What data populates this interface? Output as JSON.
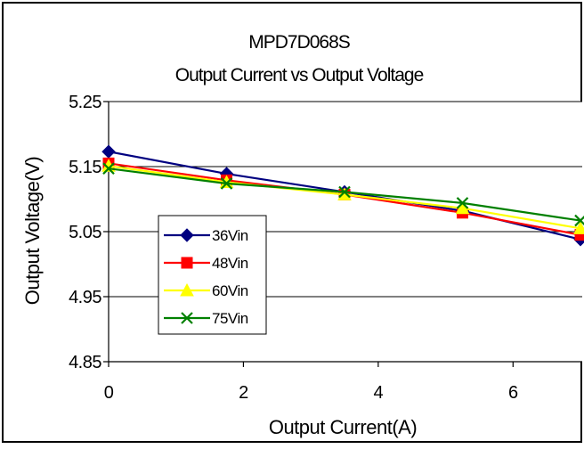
{
  "chart_data": {
    "type": "line",
    "title": "MPD7D068S",
    "subtitle": "Output Current vs Output Voltage",
    "xlabel": "Output Current(A)",
    "ylabel": "Output Voltage(V)",
    "xlim": [
      0,
      7
    ],
    "ylim": [
      4.85,
      5.25
    ],
    "xticks": [
      "0",
      "2",
      "4",
      "6"
    ],
    "yticks": [
      "4.85",
      "4.95",
      "5.05",
      "5.15",
      "5.25"
    ],
    "grid": "horizontal",
    "legend_position": "left",
    "x": [
      0,
      1.75,
      3.5,
      5.25,
      7
    ],
    "series": [
      {
        "name": "36Vin",
        "color": "#000080",
        "marker": "diamond",
        "values": [
          5.173,
          5.139,
          5.111,
          5.082,
          5.038
        ]
      },
      {
        "name": "48Vin",
        "color": "#ff0000",
        "marker": "square",
        "values": [
          5.155,
          5.129,
          5.107,
          5.079,
          5.045
        ]
      },
      {
        "name": "60Vin",
        "color": "#ffff00",
        "marker": "triangle",
        "values": [
          5.151,
          5.126,
          5.107,
          5.086,
          5.055
        ]
      },
      {
        "name": "75Vin",
        "color": "#008000",
        "marker": "x",
        "values": [
          5.147,
          5.124,
          5.111,
          5.094,
          5.067
        ]
      }
    ]
  }
}
